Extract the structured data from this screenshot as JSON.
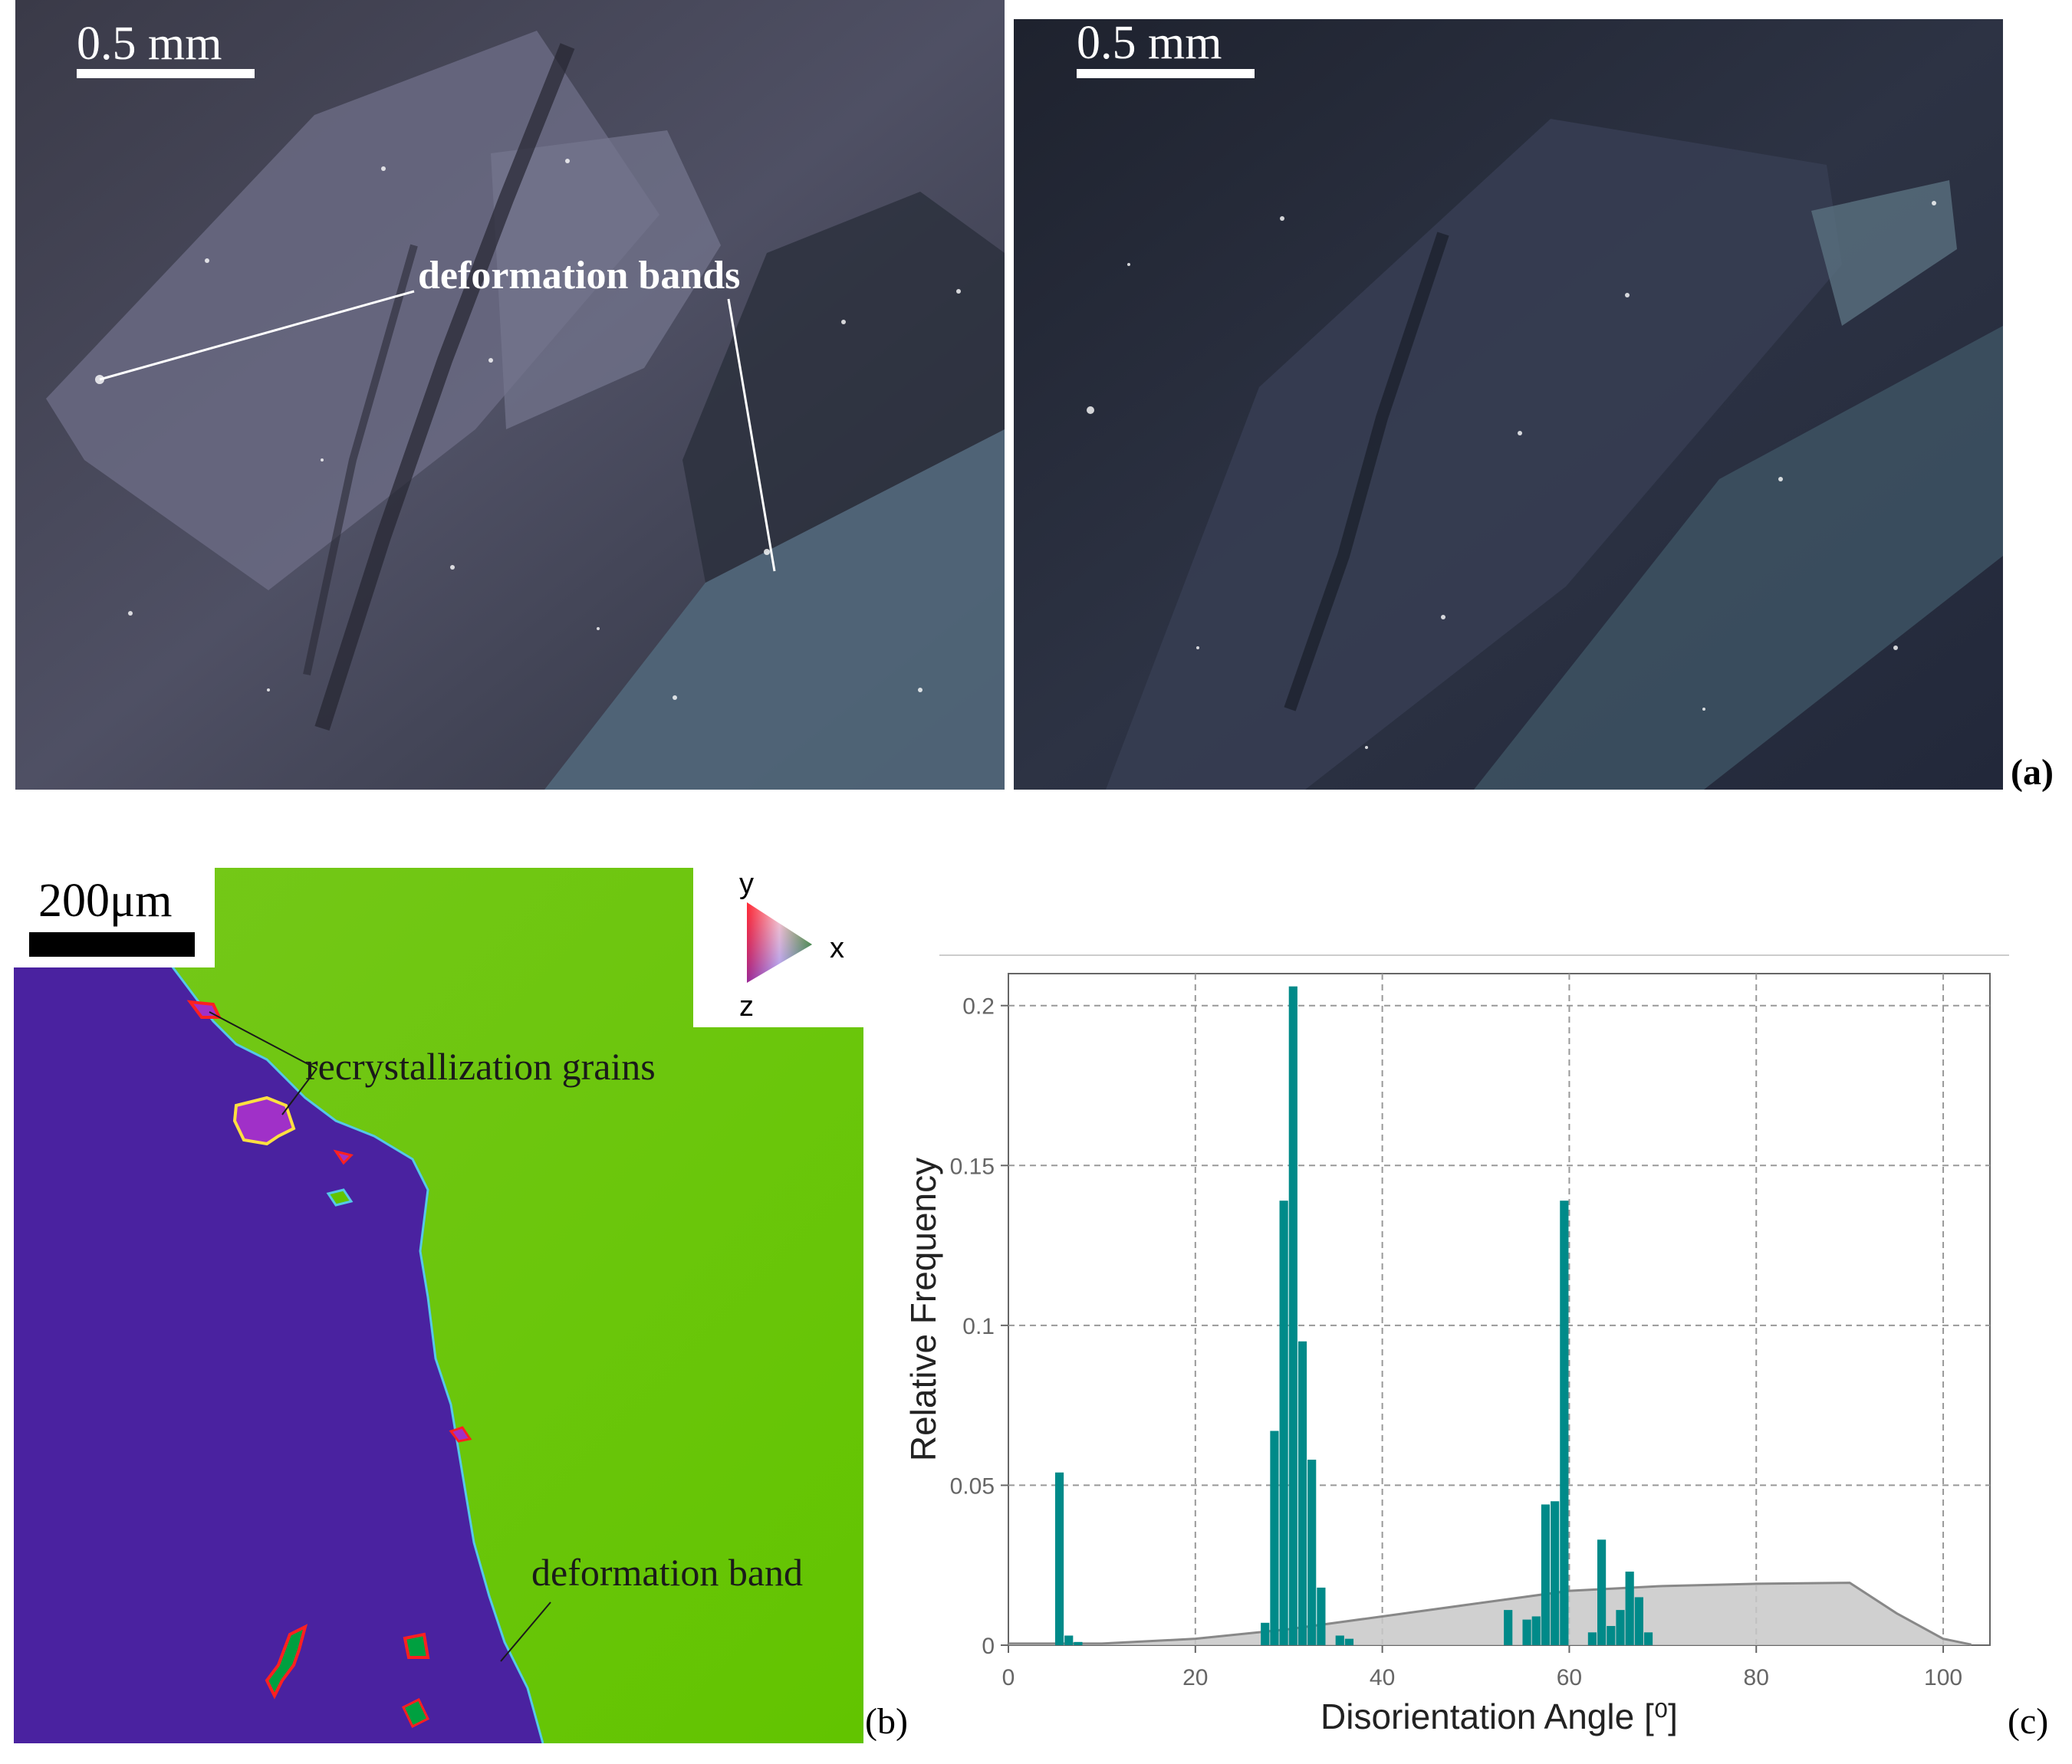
{
  "panel_a": {
    "letter": "(a)",
    "left_scale": "0.5 mm",
    "right_scale": "0.5 mm",
    "annotation": "deformation bands"
  },
  "panel_b": {
    "letter": "(b)",
    "scale": "200μm",
    "recrystallization_label": "recrystallization grains",
    "deformation_label": "deformation band",
    "key": {
      "y": "y",
      "x": "x",
      "z": "z"
    }
  },
  "panel_c": {
    "letter": "(c)",
    "xlabel": "Disorientation Angle [⁰]",
    "ylabel": "Relative Frequency",
    "x_ticks": [
      "0",
      "20",
      "40",
      "60",
      "80",
      "100"
    ],
    "y_ticks": [
      "0",
      "0.05",
      "0.1",
      "0.15",
      "0.2"
    ],
    "colors": {
      "bars": "#008a89",
      "reference": "#c8c8c8",
      "grid": "#999999"
    }
  },
  "chart_data": {
    "type": "bar",
    "xlabel": "Disorientation Angle [⁰]",
    "ylabel": "Relative Frequency",
    "xlim": [
      0,
      105
    ],
    "ylim": [
      0,
      0.21
    ],
    "bin_width": 1,
    "bars": [
      {
        "x": 5.5,
        "y": 0.054
      },
      {
        "x": 6.5,
        "y": 0.003
      },
      {
        "x": 7.5,
        "y": 0.001
      },
      {
        "x": 27.5,
        "y": 0.007
      },
      {
        "x": 28.5,
        "y": 0.067
      },
      {
        "x": 29.5,
        "y": 0.139
      },
      {
        "x": 30.5,
        "y": 0.206
      },
      {
        "x": 31.5,
        "y": 0.095
      },
      {
        "x": 32.5,
        "y": 0.058
      },
      {
        "x": 33.5,
        "y": 0.018
      },
      {
        "x": 35.5,
        "y": 0.003
      },
      {
        "x": 36.5,
        "y": 0.002
      },
      {
        "x": 53.5,
        "y": 0.011
      },
      {
        "x": 55.5,
        "y": 0.008
      },
      {
        "x": 56.5,
        "y": 0.009
      },
      {
        "x": 57.5,
        "y": 0.044
      },
      {
        "x": 58.5,
        "y": 0.045
      },
      {
        "x": 59.5,
        "y": 0.139
      },
      {
        "x": 62.5,
        "y": 0.004
      },
      {
        "x": 63.5,
        "y": 0.033
      },
      {
        "x": 64.5,
        "y": 0.006
      },
      {
        "x": 65.5,
        "y": 0.011
      },
      {
        "x": 66.5,
        "y": 0.023
      },
      {
        "x": 67.5,
        "y": 0.015
      },
      {
        "x": 68.5,
        "y": 0.004
      }
    ],
    "reference_curve": [
      {
        "x": 0,
        "y": 0.0005
      },
      {
        "x": 10,
        "y": 0.0005
      },
      {
        "x": 20,
        "y": 0.002
      },
      {
        "x": 30,
        "y": 0.005
      },
      {
        "x": 40,
        "y": 0.009
      },
      {
        "x": 50,
        "y": 0.013
      },
      {
        "x": 60,
        "y": 0.017
      },
      {
        "x": 70,
        "y": 0.0185
      },
      {
        "x": 80,
        "y": 0.0192
      },
      {
        "x": 90,
        "y": 0.0195
      },
      {
        "x": 95,
        "y": 0.01
      },
      {
        "x": 100,
        "y": 0.002
      },
      {
        "x": 103,
        "y": 0.0002
      }
    ],
    "grid": true
  }
}
